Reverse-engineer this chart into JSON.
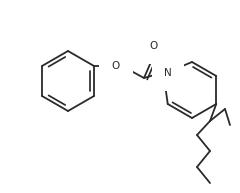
{
  "bg_color": "#ffffff",
  "line_color": "#2a2a2a",
  "line_width": 1.3,
  "figsize": [
    2.4,
    1.93
  ],
  "dpi": 100,
  "xlim": [
    0,
    240
  ],
  "ylim": [
    0,
    193
  ]
}
